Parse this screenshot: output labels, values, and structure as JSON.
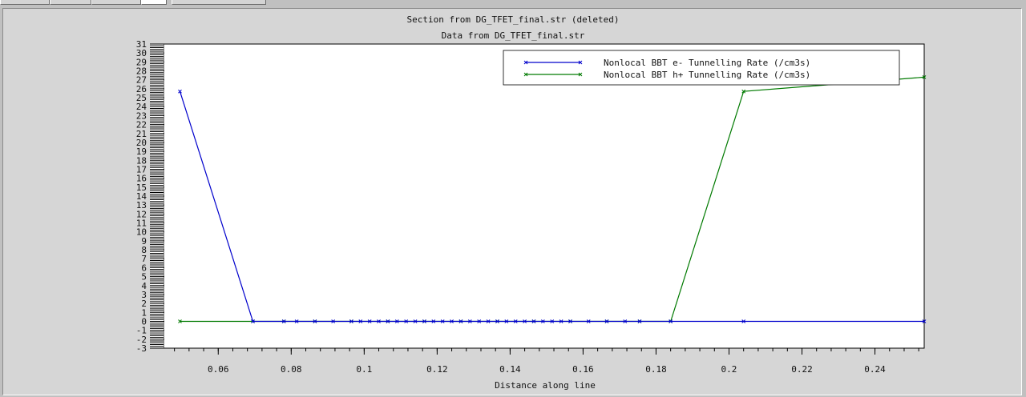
{
  "chart_data": {
    "type": "line",
    "title": "Section from DG_TFET_final.str (deleted)",
    "subtitle": "Data from DG_TFET_final.str",
    "xlabel": "Distance along line",
    "ylabel": "",
    "xlim": [
      0.045,
      0.2535
    ],
    "ylim": [
      -3,
      31
    ],
    "x_ticks": [
      0.06,
      0.08,
      0.1,
      0.12,
      0.14,
      0.16,
      0.18,
      0.2,
      0.22,
      0.24
    ],
    "x_tick_labels": [
      "0.06",
      "0.08",
      "0.1",
      "0.12",
      "0.14",
      "0.16",
      "0.18",
      "0.2",
      "0.22",
      "0.24"
    ],
    "y_ticks": [
      31,
      30,
      29,
      28,
      27,
      26,
      25,
      24,
      23,
      22,
      21,
      20,
      19,
      18,
      17,
      16,
      15,
      14,
      13,
      12,
      11,
      10,
      9,
      8,
      7,
      6,
      5,
      4,
      3,
      2,
      1,
      0,
      -1,
      -2,
      -3
    ],
    "y_tick_labels": [
      "31",
      "30",
      "29",
      "28",
      "27",
      "26",
      "25",
      "24",
      "23",
      "22",
      "21",
      "20",
      "19",
      "18",
      "17",
      "16",
      "15",
      "14",
      "13",
      "12",
      "11",
      "10",
      "9",
      "8",
      "7",
      "6",
      "5",
      "4",
      "3",
      "2",
      "1",
      "0",
      "-1",
      "-2",
      "-3"
    ],
    "legend_position": "top-right",
    "grid": false,
    "series": [
      {
        "name": "Nonlocal BBT e- Tunnelling Rate (/cm3s)",
        "color": "#0000cc",
        "points": [
          [
            0.0495,
            25.7
          ],
          [
            0.0695,
            0
          ],
          [
            0.078,
            0
          ],
          [
            0.0815,
            0
          ],
          [
            0.0865,
            0
          ],
          [
            0.0915,
            0
          ],
          [
            0.0965,
            0
          ],
          [
            0.099,
            0
          ],
          [
            0.1015,
            0
          ],
          [
            0.104,
            0
          ],
          [
            0.1065,
            0
          ],
          [
            0.109,
            0
          ],
          [
            0.1115,
            0
          ],
          [
            0.114,
            0
          ],
          [
            0.1165,
            0
          ],
          [
            0.119,
            0
          ],
          [
            0.1215,
            0
          ],
          [
            0.124,
            0
          ],
          [
            0.1265,
            0
          ],
          [
            0.129,
            0
          ],
          [
            0.1315,
            0
          ],
          [
            0.134,
            0
          ],
          [
            0.1365,
            0
          ],
          [
            0.139,
            0
          ],
          [
            0.1415,
            0
          ],
          [
            0.144,
            0
          ],
          [
            0.1465,
            0
          ],
          [
            0.149,
            0
          ],
          [
            0.1515,
            0
          ],
          [
            0.154,
            0
          ],
          [
            0.1565,
            0
          ],
          [
            0.1615,
            0
          ],
          [
            0.1665,
            0
          ],
          [
            0.1715,
            0
          ],
          [
            0.1755,
            0
          ],
          [
            0.184,
            0
          ],
          [
            0.204,
            0
          ],
          [
            0.2535,
            0
          ]
        ]
      },
      {
        "name": "Nonlocal BBT h+ Tunnelling Rate (/cm3s)",
        "color": "#007a00",
        "points": [
          [
            0.0495,
            0
          ],
          [
            0.0695,
            0
          ],
          [
            0.078,
            0
          ],
          [
            0.0865,
            0
          ],
          [
            0.0965,
            0
          ],
          [
            0.1065,
            0
          ],
          [
            0.1165,
            0
          ],
          [
            0.1265,
            0
          ],
          [
            0.1365,
            0
          ],
          [
            0.1465,
            0
          ],
          [
            0.1565,
            0
          ],
          [
            0.1665,
            0
          ],
          [
            0.1755,
            0
          ],
          [
            0.184,
            0
          ],
          [
            0.204,
            25.7
          ],
          [
            0.2535,
            27.3
          ]
        ]
      }
    ]
  }
}
